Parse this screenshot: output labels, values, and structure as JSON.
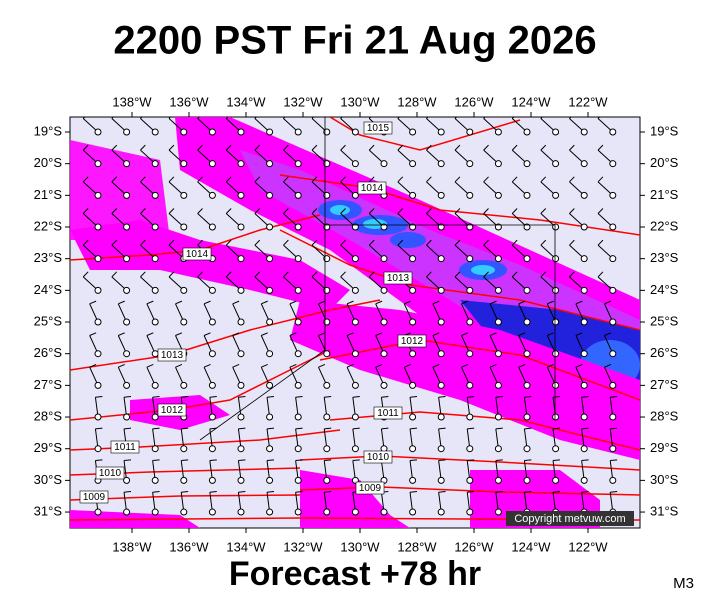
{
  "header": {
    "title": "2200 PST Fri 21 Aug 2026"
  },
  "map": {
    "longitudes": [
      "138°W",
      "136°W",
      "134°W",
      "132°W",
      "130°W",
      "128°W",
      "126°W",
      "124°W",
      "122°W"
    ],
    "latitudes": [
      "19°S",
      "20°S",
      "21°S",
      "22°S",
      "23°S",
      "24°S",
      "25°S",
      "26°S",
      "27°S",
      "28°S",
      "29°S",
      "30°S",
      "31°S"
    ],
    "isobar_labels": [
      "1015",
      "1014",
      "1014",
      "1013",
      "1013",
      "1012",
      "1012",
      "1011",
      "1011",
      "1010",
      "1010",
      "1009",
      "1009"
    ],
    "copyright": "Copyright metvuw.com"
  },
  "footer": {
    "forecast": "Forecast +78 hr",
    "model": "M3"
  }
}
